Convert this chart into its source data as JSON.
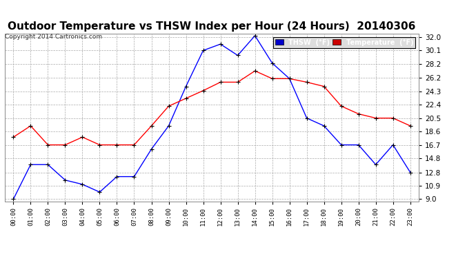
{
  "title": "Outdoor Temperature vs THSW Index per Hour (24 Hours)  20140306",
  "copyright": "Copyright 2014 Cartronics.com",
  "hours": [
    "00:00",
    "01:00",
    "02:00",
    "03:00",
    "04:00",
    "05:00",
    "06:00",
    "07:00",
    "08:00",
    "09:00",
    "10:00",
    "11:00",
    "12:00",
    "13:00",
    "14:00",
    "15:00",
    "16:00",
    "17:00",
    "18:00",
    "19:00",
    "20:00",
    "21:00",
    "22:00",
    "23:00"
  ],
  "thsw": [
    9.0,
    13.9,
    13.9,
    11.7,
    11.1,
    10.0,
    12.2,
    12.2,
    16.1,
    19.4,
    25.0,
    30.1,
    31.0,
    29.4,
    32.2,
    28.3,
    26.1,
    20.5,
    19.4,
    16.7,
    16.7,
    13.9,
    16.7,
    12.8
  ],
  "temperature": [
    17.8,
    19.4,
    16.7,
    16.7,
    17.8,
    16.7,
    16.7,
    16.7,
    19.4,
    22.2,
    23.3,
    24.4,
    25.6,
    25.6,
    27.2,
    26.1,
    26.1,
    25.6,
    25.0,
    22.2,
    21.1,
    20.5,
    20.5,
    19.4
  ],
  "thsw_color": "#0000ff",
  "temp_color": "#ff0000",
  "background_color": "#ffffff",
  "grid_color": "#aaaaaa",
  "title_fontsize": 11,
  "ylim": [
    9.0,
    32.0
  ],
  "yticks": [
    9.0,
    10.9,
    12.8,
    14.8,
    16.7,
    18.6,
    20.5,
    22.4,
    24.3,
    26.2,
    28.2,
    30.1,
    32.0
  ],
  "legend_thsw_bg": "#0000cc",
  "legend_temp_bg": "#cc0000",
  "legend_thsw_label": "THSW  (°F)",
  "legend_temp_label": "Temperature  (°F)"
}
